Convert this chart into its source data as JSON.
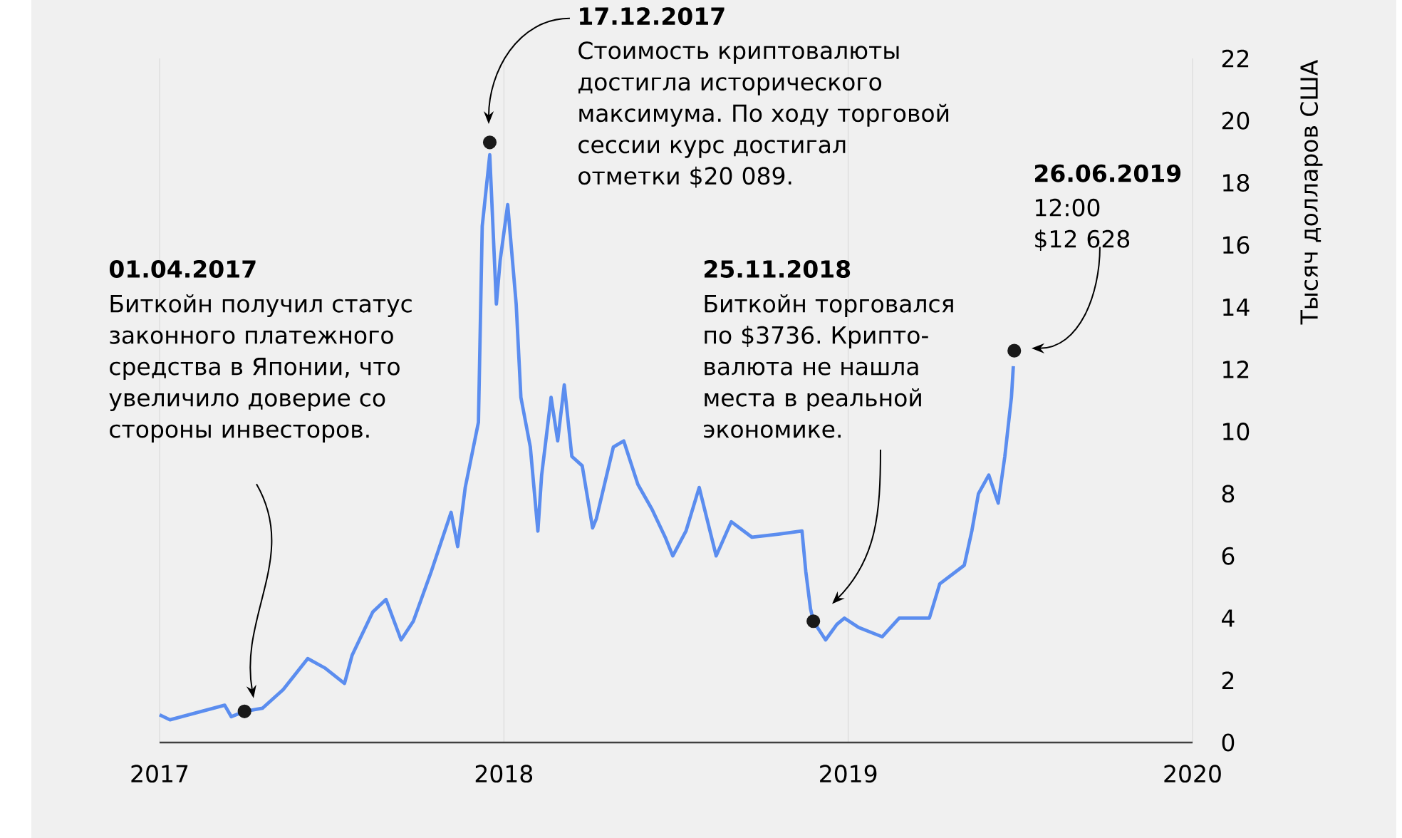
{
  "chart_data": {
    "type": "line",
    "ylabel": "Тысяч долларов США",
    "x": [
      "2017-01-01",
      "2017-01-12",
      "2017-03-11",
      "2017-03-18",
      "2017-04-01",
      "2017-04-20",
      "2017-05-12",
      "2017-06-07",
      "2017-06-25",
      "2017-07-16",
      "2017-07-24",
      "2017-08-15",
      "2017-08-29",
      "2017-09-14",
      "2017-09-27",
      "2017-10-16",
      "2017-11-06",
      "2017-11-13",
      "2017-11-21",
      "2017-12-05",
      "2017-12-09",
      "2017-12-17",
      "2017-12-24",
      "2017-12-28",
      "2018-01-05",
      "2018-01-14",
      "2018-01-19",
      "2018-01-29",
      "2018-02-06",
      "2018-02-10",
      "2018-02-20",
      "2018-02-27",
      "2018-03-06",
      "2018-03-14",
      "2018-03-25",
      "2018-04-05",
      "2018-04-09",
      "2018-04-27",
      "2018-05-08",
      "2018-05-23",
      "2018-06-07",
      "2018-06-21",
      "2018-06-29",
      "2018-07-13",
      "2018-07-27",
      "2018-08-14",
      "2018-08-30",
      "2018-09-21",
      "2018-10-19",
      "2018-11-13",
      "2018-11-17",
      "2018-11-22",
      "2018-11-25",
      "2018-12-08",
      "2018-12-20",
      "2018-12-28",
      "2019-01-12",
      "2019-02-06",
      "2019-02-24",
      "2019-03-28",
      "2019-04-08",
      "2019-05-04",
      "2019-05-12",
      "2019-05-19",
      "2019-05-30",
      "2019-06-09",
      "2019-06-16",
      "2019-06-23",
      "2019-06-25"
    ],
    "series": [
      {
        "color": "#5b8def",
        "marker": "none",
        "values": [
          0.89,
          0.73,
          1.2,
          0.83,
          1.0,
          1.1,
          1.7,
          2.7,
          2.4,
          1.9,
          2.8,
          4.2,
          4.6,
          3.3,
          3.9,
          5.5,
          7.4,
          6.3,
          8.2,
          10.3,
          16.6,
          18.9,
          14.1,
          15.5,
          17.3,
          14.1,
          11.1,
          9.5,
          6.8,
          8.6,
          11.1,
          9.7,
          11.5,
          9.2,
          8.9,
          6.9,
          7.2,
          9.5,
          9.7,
          8.3,
          7.5,
          6.6,
          6.0,
          6.8,
          8.2,
          6.0,
          7.1,
          6.6,
          6.7,
          6.8,
          5.5,
          4.3,
          3.9,
          3.3,
          3.8,
          4.0,
          3.7,
          3.4,
          4.0,
          4.0,
          5.1,
          5.7,
          6.8,
          8.0,
          8.6,
          7.7,
          9.2,
          11.1,
          12.1
        ]
      },
      {
        "type": "scatter",
        "color": "#1a1a1a",
        "marker": "circle",
        "x": [
          "2017-04-01",
          "2017-12-17",
          "2018-11-25",
          "2019-06-26"
        ],
        "values": [
          1.0,
          19.3,
          3.9,
          12.6
        ]
      }
    ],
    "xlim": [
      "2017-01-01",
      "2020-01-01"
    ],
    "xticks": [
      "2017",
      "2018",
      "2019",
      "2020"
    ],
    "ylim": [
      0,
      22
    ],
    "yticks": [
      0,
      2,
      4,
      6,
      8,
      10,
      12,
      14,
      16,
      18,
      20,
      22
    ],
    "grid": "x",
    "line_style": "solid",
    "annotations": [
      "01.04.2017",
      "Биткойн получил статус законного платежного средства в Японии, что увеличило доверие со стороны инвесторов.",
      "17.12.2017",
      "Стоимость криптовалюты достигла исторического максимума. По ходу торговой сессии курс достигал отметки $20 089.",
      "25.11.2018",
      "Биткойн торговался по $3736. Крипто-валюта не нашла места в реальной экономике.",
      "26.06.2019",
      "12:00 $12 628"
    ]
  }
}
